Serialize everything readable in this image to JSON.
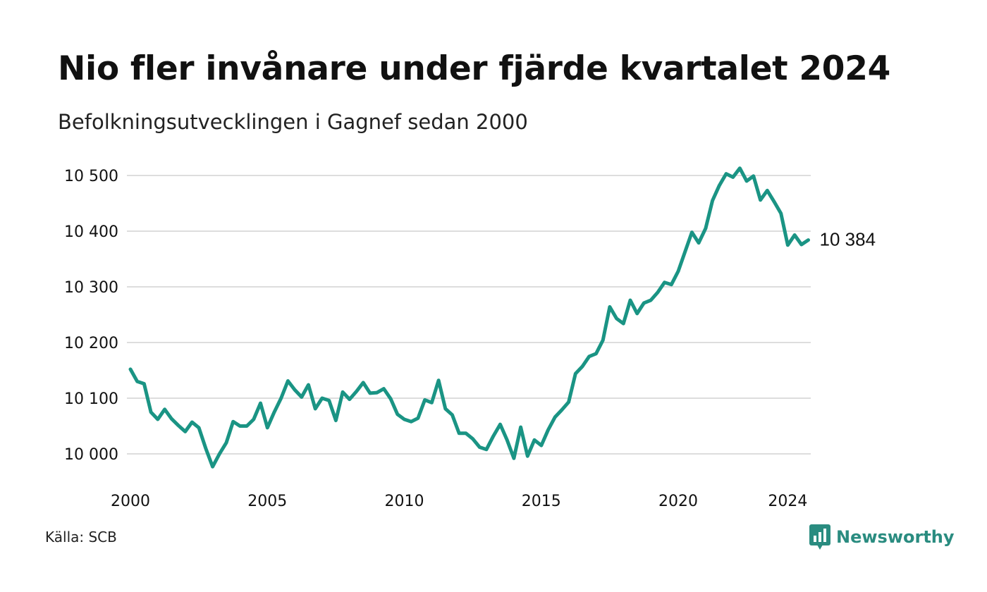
{
  "title": "Nio fler invånare under fjärde kvartalet 2024",
  "subtitle": "Befolkningsutvecklingen i Gagnef sedan 2000",
  "source": "Källa: SCB",
  "brand": {
    "name": "Newsworthy",
    "logo_icon": "bar-chart-bubble-icon"
  },
  "colors": {
    "line": "#1a9484",
    "grid": "#dddddd",
    "brand": "#2a8c80"
  },
  "chart_data": {
    "type": "line",
    "title": "Nio fler invånare under fjärde kvartalet 2024",
    "subtitle": "Befolkningsutvecklingen i Gagnef sedan 2000",
    "xlabel": "",
    "ylabel": "",
    "grid": true,
    "legend": "none",
    "xlim": [
      2000,
      2025
    ],
    "ylim": [
      9980,
      10530
    ],
    "x_ticks": [
      2000,
      2005,
      2010,
      2015,
      2020,
      2024
    ],
    "x_tick_labels": [
      "2000",
      "2005",
      "2010",
      "2015",
      "2020",
      "2024"
    ],
    "y_ticks": [
      10000,
      10100,
      10200,
      10300,
      10400,
      10500
    ],
    "y_tick_labels": [
      "10 000",
      "10 100",
      "10 200",
      "10 300",
      "10 400",
      "10 500"
    ],
    "end_label": "10 384",
    "series": [
      {
        "x": [
          2000.0,
          2000.25,
          2000.5,
          2000.75,
          2001.0,
          2001.25,
          2001.5,
          2001.75,
          2002.0,
          2002.25,
          2002.5,
          2002.75,
          2003.0,
          2003.25,
          2003.5,
          2003.75,
          2004.0,
          2004.25,
          2004.5,
          2004.75,
          2005.0,
          2005.25,
          2005.5,
          2005.75,
          2006.0,
          2006.25,
          2006.5,
          2006.75,
          2007.0,
          2007.25,
          2007.5,
          2007.75,
          2008.0,
          2008.25,
          2008.5,
          2008.75,
          2009.0,
          2009.25,
          2009.5,
          2009.75,
          2010.0,
          2010.25,
          2010.5,
          2010.75,
          2011.0,
          2011.25,
          2011.5,
          2011.75,
          2012.0,
          2012.25,
          2012.5,
          2012.75,
          2013.0,
          2013.25,
          2013.5,
          2013.75,
          2014.0,
          2014.25,
          2014.5,
          2014.75,
          2015.0,
          2015.25,
          2015.5,
          2015.75,
          2016.0,
          2016.25,
          2016.5,
          2016.75,
          2017.0,
          2017.25,
          2017.5,
          2017.75,
          2018.0,
          2018.25,
          2018.5,
          2018.75,
          2019.0,
          2019.25,
          2019.5,
          2019.75,
          2020.0,
          2020.25,
          2020.5,
          2020.75,
          2021.0,
          2021.25,
          2021.5,
          2021.75,
          2022.0,
          2022.25,
          2022.5,
          2022.75,
          2023.0,
          2023.25,
          2023.5,
          2023.75,
          2024.0,
          2024.25,
          2024.5,
          2024.75
        ],
        "y": [
          10152,
          10130,
          10126,
          10075,
          10062,
          10080,
          10063,
          10051,
          10040,
          10057,
          10047,
          10010,
          9977,
          10000,
          10020,
          10058,
          10050,
          10050,
          10062,
          10091,
          10047,
          10075,
          10100,
          10131,
          10115,
          10102,
          10124,
          10081,
          10100,
          10096,
          10060,
          10111,
          10098,
          10112,
          10128,
          10109,
          10110,
          10117,
          10099,
          10071,
          10062,
          10058,
          10064,
          10097,
          10092,
          10132,
          10081,
          10070,
          10037,
          10037,
          10027,
          10012,
          10008,
          10032,
          10053,
          10025,
          9992,
          10048,
          9996,
          10025,
          10015,
          10043,
          10066,
          10079,
          10093,
          10144,
          10157,
          10175,
          10180,
          10204,
          10264,
          10243,
          10234,
          10276,
          10252,
          10271,
          10276,
          10290,
          10308,
          10304,
          10328,
          10363,
          10398,
          10379,
          10405,
          10455,
          10482,
          10503,
          10497,
          10513,
          10490,
          10499,
          10456,
          10473,
          10453,
          10432,
          10375,
          10393,
          10376,
          10384
        ]
      }
    ]
  }
}
